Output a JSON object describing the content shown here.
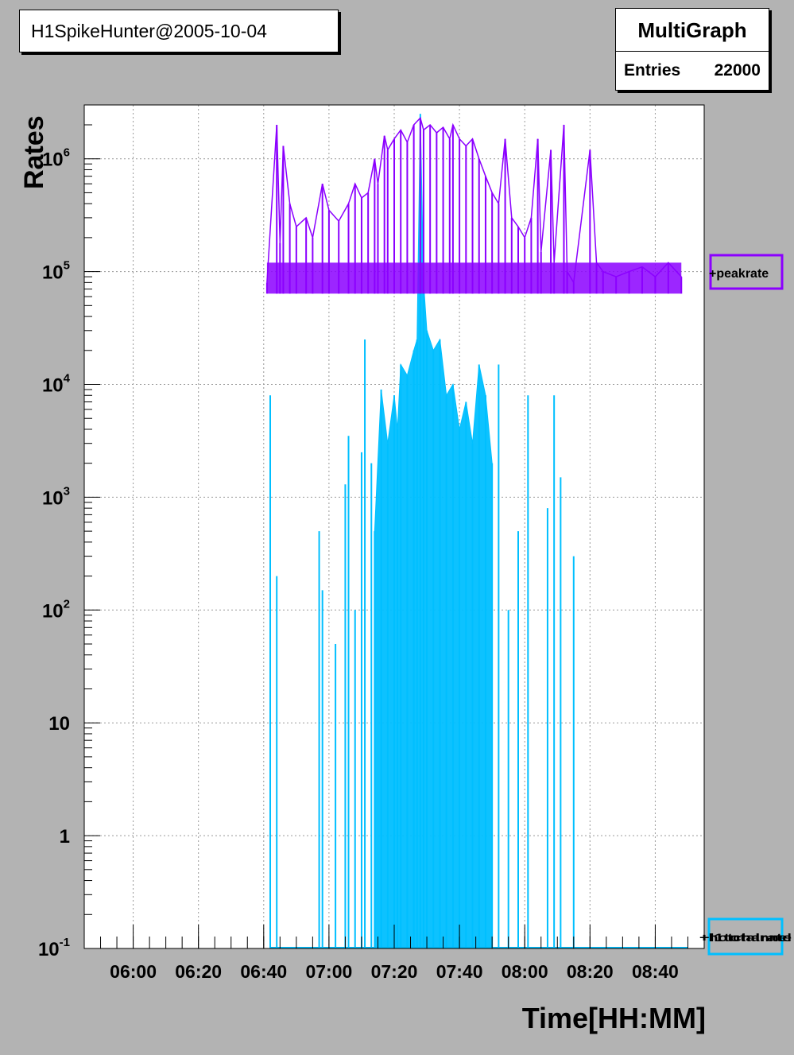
{
  "header": {
    "title": "H1SpikeHunter@2005-10-04"
  },
  "stats": {
    "title": "MultiGraph",
    "entries_label": "Entries",
    "entries_value": "22000"
  },
  "chart_data": {
    "type": "line",
    "title": "",
    "xlabel": "Time[HH:MM]",
    "ylabel": "Rates",
    "y_scale": "log",
    "grid": true,
    "xlim": [
      "05:45",
      "08:55"
    ],
    "ylim": [
      0.1,
      3000000
    ],
    "x_ticks": [
      "06:00",
      "06:20",
      "06:40",
      "07:00",
      "07:20",
      "07:40",
      "08:00",
      "08:20",
      "08:40"
    ],
    "y_ticks": [
      {
        "value": 0.1,
        "base": "10",
        "exp": "-1"
      },
      {
        "value": 1,
        "base": "1",
        "exp": ""
      },
      {
        "value": 10,
        "base": "10",
        "exp": ""
      },
      {
        "value": 100,
        "base": "10",
        "exp": "2"
      },
      {
        "value": 1000,
        "base": "10",
        "exp": "3"
      },
      {
        "value": 10000,
        "base": "10",
        "exp": "4"
      },
      {
        "value": 100000,
        "base": "10",
        "exp": "5"
      },
      {
        "value": 1000000,
        "base": "10",
        "exp": "6"
      }
    ],
    "colors": {
      "peakrate": "#8b00ff",
      "rates": "#00bfff",
      "plot_bg": "#ffffff",
      "canvas_bg": "#b3b3b3",
      "grid": "#999999"
    },
    "legend_labels": {
      "peakrate": "+peakrate",
      "rates": "+l1totalrate",
      "rates_overlap": "+hotchannel"
    },
    "series": [
      {
        "name": "peakrate",
        "baseline": 75000,
        "points": [
          [
            "06:41",
            80000
          ],
          [
            "06:44",
            2000000
          ],
          [
            "06:45",
            180000
          ],
          [
            "06:46",
            1300000
          ],
          [
            "06:48",
            400000
          ],
          [
            "06:50",
            250000
          ],
          [
            "06:53",
            300000
          ],
          [
            "06:55",
            200000
          ],
          [
            "06:58",
            600000
          ],
          [
            "07:00",
            350000
          ],
          [
            "07:03",
            280000
          ],
          [
            "07:06",
            400000
          ],
          [
            "07:08",
            600000
          ],
          [
            "07:10",
            450000
          ],
          [
            "07:12",
            500000
          ],
          [
            "07:14",
            1000000
          ],
          [
            "07:15",
            600000
          ],
          [
            "07:17",
            1600000
          ],
          [
            "07:18",
            1200000
          ],
          [
            "07:20",
            1500000
          ],
          [
            "07:22",
            1800000
          ],
          [
            "07:24",
            1400000
          ],
          [
            "07:26",
            2000000
          ],
          [
            "07:28",
            2300000
          ],
          [
            "07:29",
            1800000
          ],
          [
            "07:31",
            2000000
          ],
          [
            "07:33",
            1700000
          ],
          [
            "07:35",
            1900000
          ],
          [
            "07:37",
            1500000
          ],
          [
            "07:38",
            2000000
          ],
          [
            "07:40",
            1500000
          ],
          [
            "07:42",
            1300000
          ],
          [
            "07:44",
            1500000
          ],
          [
            "07:46",
            1000000
          ],
          [
            "07:48",
            700000
          ],
          [
            "07:50",
            500000
          ],
          [
            "07:52",
            400000
          ],
          [
            "07:54",
            1500000
          ],
          [
            "07:56",
            300000
          ],
          [
            "07:58",
            250000
          ],
          [
            "08:00",
            200000
          ],
          [
            "08:02",
            300000
          ],
          [
            "08:04",
            1500000
          ],
          [
            "08:05",
            150000
          ],
          [
            "08:08",
            1200000
          ],
          [
            "08:09",
            120000
          ],
          [
            "08:12",
            2000000
          ],
          [
            "08:13",
            100000
          ],
          [
            "08:15",
            80000
          ],
          [
            "08:20",
            1200000
          ],
          [
            "08:22",
            120000
          ],
          [
            "08:24",
            100000
          ],
          [
            "08:28",
            90000
          ],
          [
            "08:32",
            100000
          ],
          [
            "08:36",
            110000
          ],
          [
            "08:40",
            90000
          ],
          [
            "08:44",
            120000
          ],
          [
            "08:48",
            90000
          ]
        ]
      },
      {
        "name": "rates",
        "baseline": 0.1,
        "dense_band": [
          "07:14",
          "07:50"
        ],
        "dense_level": 0.1,
        "points": [
          [
            "06:42",
            8000
          ],
          [
            "06:44",
            200
          ],
          [
            "06:57",
            500
          ],
          [
            "06:58",
            150
          ],
          [
            "07:02",
            50
          ],
          [
            "07:05",
            1300
          ],
          [
            "07:06",
            3500
          ],
          [
            "07:08",
            100
          ],
          [
            "07:10",
            2500
          ],
          [
            "07:11",
            25000
          ],
          [
            "07:13",
            2000
          ],
          [
            "07:14",
            500
          ],
          [
            "07:16",
            9000
          ],
          [
            "07:18",
            3000
          ],
          [
            "07:20",
            8000
          ],
          [
            "07:21",
            4000
          ],
          [
            "07:22",
            15000
          ],
          [
            "07:24",
            12000
          ],
          [
            "07:26",
            20000
          ],
          [
            "07:27",
            25000
          ],
          [
            "07:28",
            2500000
          ],
          [
            "07:29",
            80000
          ],
          [
            "07:30",
            30000
          ],
          [
            "07:32",
            20000
          ],
          [
            "07:34",
            25000
          ],
          [
            "07:36",
            8000
          ],
          [
            "07:38",
            10000
          ],
          [
            "07:40",
            4000
          ],
          [
            "07:42",
            7000
          ],
          [
            "07:44",
            3000
          ],
          [
            "07:46",
            15000
          ],
          [
            "07:48",
            8000
          ],
          [
            "07:50",
            2000
          ],
          [
            "07:52",
            15000
          ],
          [
            "07:55",
            100
          ],
          [
            "07:58",
            500
          ],
          [
            "08:01",
            8000
          ],
          [
            "08:07",
            800
          ],
          [
            "08:09",
            8000
          ],
          [
            "08:11",
            1500
          ],
          [
            "08:15",
            300
          ]
        ]
      }
    ]
  }
}
